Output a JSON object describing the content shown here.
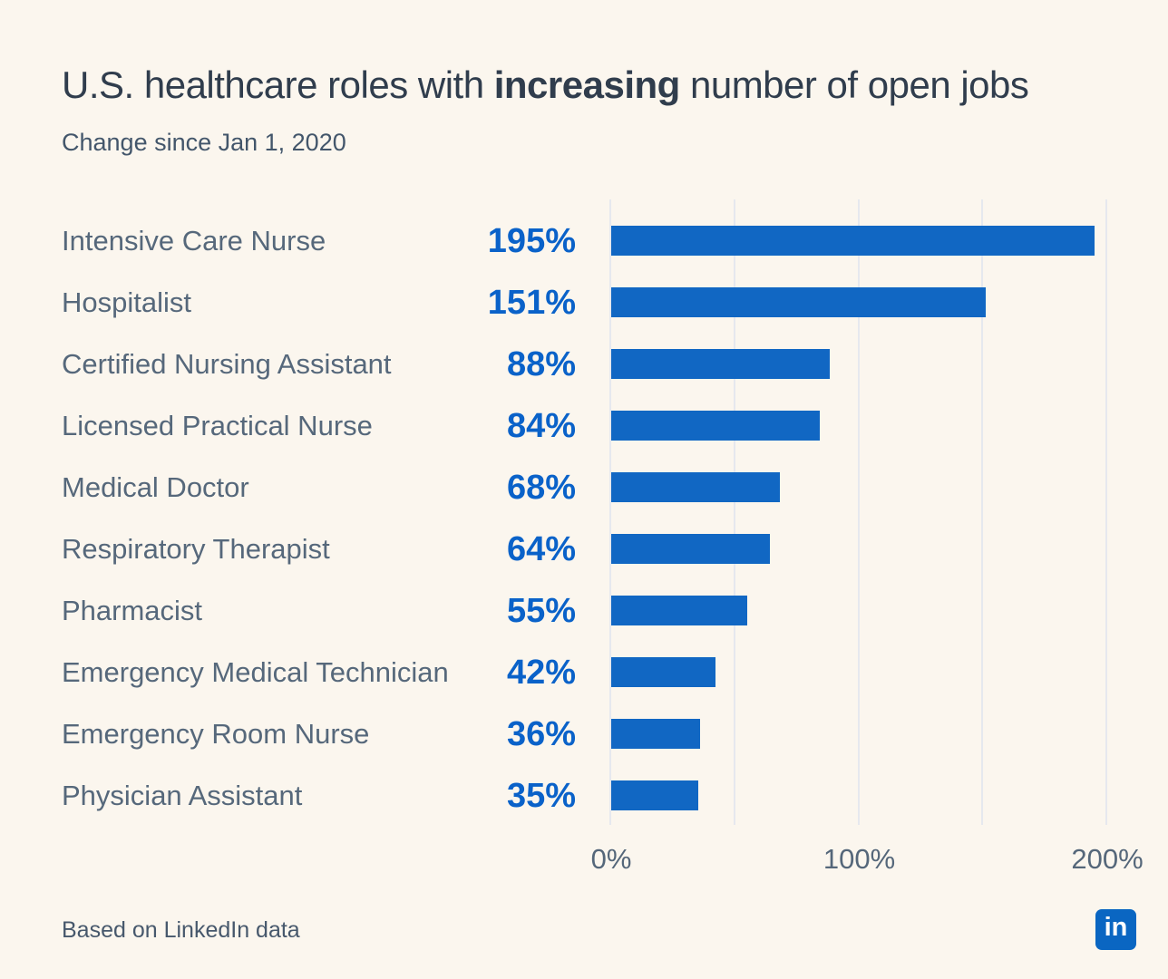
{
  "page": {
    "title_prefix": "U.S. healthcare roles with ",
    "title_emphasis": "increasing",
    "title_suffix": " number of open jobs",
    "subtitle": "Change since Jan 1, 2020",
    "footer": "Based on LinkedIn data",
    "logo_text": "in"
  },
  "colors": {
    "background": "#FBF6EE",
    "title": "#303D4D",
    "subtitle": "#43566B",
    "row_label": "#56687B",
    "value_text": "#0A62C9",
    "bar": "#1167C3",
    "gridline": "#E6E8EE",
    "axis_text": "#55677A",
    "linkedin_blue": "#0A66C2"
  },
  "chart_data": {
    "type": "bar",
    "orientation": "horizontal",
    "title": "U.S. healthcare roles with increasing number of open jobs",
    "subtitle": "Change since Jan 1, 2020",
    "categories": [
      "Intensive Care Nurse",
      "Hospitalist",
      "Certified Nursing Assistant",
      "Licensed Practical Nurse",
      "Medical Doctor",
      "Respiratory Therapist",
      "Pharmacist",
      "Emergency Medical Technician",
      "Emergency Room Nurse",
      "Physician Assistant"
    ],
    "values": [
      195,
      151,
      88,
      84,
      68,
      64,
      55,
      42,
      36,
      35
    ],
    "value_labels": [
      "195%",
      "151%",
      "88%",
      "84%",
      "68%",
      "64%",
      "55%",
      "42%",
      "36%",
      "35%"
    ],
    "xlabel": "",
    "ylabel": "",
    "xlim": [
      0,
      200
    ],
    "x_ticks": [
      "0%",
      "100%",
      "200%"
    ],
    "x_tick_values": [
      0,
      100,
      200
    ],
    "gridline_values": [
      0,
      50,
      100,
      150,
      200
    ],
    "grid": true,
    "legend": false,
    "source_note": "Based on LinkedIn data"
  }
}
